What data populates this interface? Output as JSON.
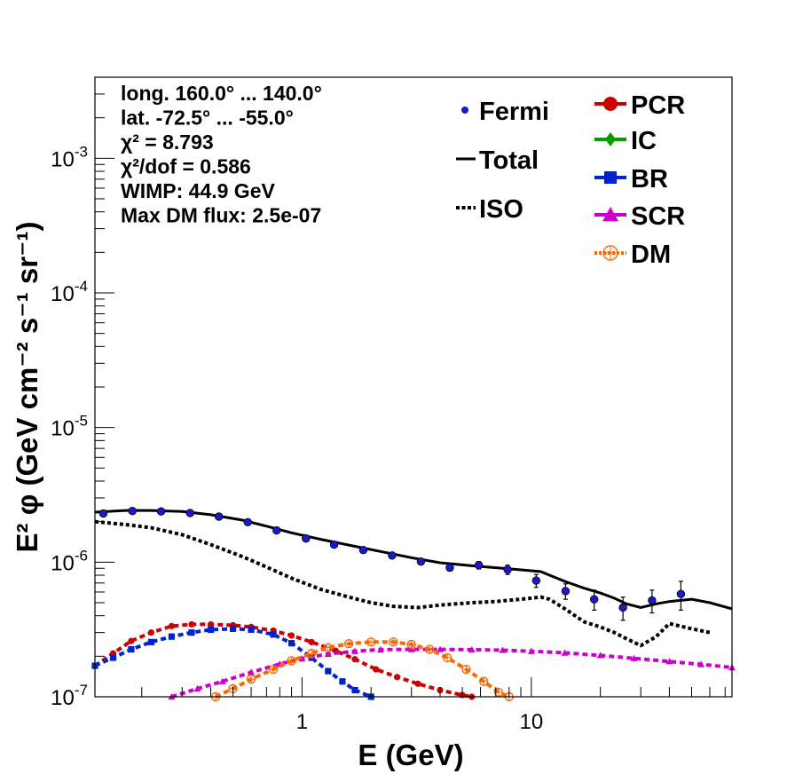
{
  "chart_data": {
    "type": "line",
    "title": "",
    "xlabel": "E (GeV)",
    "ylabel": "E² φ (GeV cm⁻² s⁻¹ sr⁻¹)",
    "xscale": "log",
    "yscale": "log",
    "xlim": [
      0.125,
      75
    ],
    "ylim": [
      1e-07,
      0.004
    ],
    "grid": false,
    "x_ticks": [
      {
        "value": 1,
        "label": "1"
      },
      {
        "value": 10,
        "label": "10"
      }
    ],
    "y_ticks": [
      {
        "value": 1e-07,
        "base": "10",
        "exp": "-7"
      },
      {
        "value": 1e-06,
        "base": "10",
        "exp": "-6"
      },
      {
        "value": 1e-05,
        "base": "10",
        "exp": "-5"
      },
      {
        "value": 0.0001,
        "base": "10",
        "exp": "-4"
      },
      {
        "value": 0.001,
        "base": "10",
        "exp": "-3"
      }
    ],
    "info_lines": [
      "long. 160.0° ... 140.0°",
      "lat. -72.5° ... -55.0°",
      "χ² = 8.793",
      "χ²/dof = 0.586",
      "WIMP: 44.9 GeV",
      "Max DM flux: 2.5e-07"
    ],
    "legend_left": [
      {
        "label": "Fermi",
        "key": "fermi"
      },
      {
        "label": "Total",
        "key": "total"
      },
      {
        "label": "ISO",
        "key": "iso"
      }
    ],
    "legend_right": [
      {
        "label": "PCR",
        "key": "pcr"
      },
      {
        "label": "IC",
        "key": "ic"
      },
      {
        "label": "BR",
        "key": "br"
      },
      {
        "label": "SCR",
        "key": "scr"
      },
      {
        "label": "DM",
        "key": "dm"
      }
    ],
    "colors": {
      "fermi": "#1a1acc",
      "total": "#000000",
      "iso": "#000000",
      "pcr": "#cc0000",
      "ic": "#00a000",
      "br": "#0022cc",
      "scr": "#cc00cc",
      "dm": "#ff6600"
    },
    "fermi": [
      {
        "x": 0.136,
        "y": 2.3e-06,
        "err": 5e-08
      },
      {
        "x": 0.182,
        "y": 2.4e-06,
        "err": 5e-08
      },
      {
        "x": 0.243,
        "y": 2.38e-06,
        "err": 5e-08
      },
      {
        "x": 0.325,
        "y": 2.32e-06,
        "err": 5e-08
      },
      {
        "x": 0.434,
        "y": 2.18e-06,
        "err": 5e-08
      },
      {
        "x": 0.58,
        "y": 1.98e-06,
        "err": 5e-08
      },
      {
        "x": 0.775,
        "y": 1.72e-06,
        "err": 5e-08
      },
      {
        "x": 1.04,
        "y": 1.5e-06,
        "err": 5e-08
      },
      {
        "x": 1.38,
        "y": 1.35e-06,
        "err": 5e-08
      },
      {
        "x": 1.85,
        "y": 1.23e-06,
        "err": 5e-08
      },
      {
        "x": 2.47,
        "y": 1.12e-06,
        "err": 5e-08
      },
      {
        "x": 3.3,
        "y": 1.01e-06,
        "err": 5e-08
      },
      {
        "x": 4.41,
        "y": 9.1e-07,
        "err": 5e-08
      },
      {
        "x": 5.9,
        "y": 9.5e-07,
        "err": 6e-08
      },
      {
        "x": 7.88,
        "y": 8.8e-07,
        "err": 7e-08
      },
      {
        "x": 10.5,
        "y": 7.3e-07,
        "err": 8e-08
      },
      {
        "x": 14.1,
        "y": 6.1e-07,
        "err": 8e-08
      },
      {
        "x": 18.8,
        "y": 5.3e-07,
        "err": 9e-08
      },
      {
        "x": 25.1,
        "y": 4.6e-07,
        "err": 9e-08
      },
      {
        "x": 33.6,
        "y": 5.2e-07,
        "err": 1e-07
      },
      {
        "x": 44.9,
        "y": 5.8e-07,
        "err": 1.4e-07
      }
    ],
    "series": [
      {
        "key": "total",
        "style": "solid",
        "x": [
          0.125,
          0.17,
          0.22,
          0.3,
          0.4,
          0.55,
          0.7,
          0.9,
          1.2,
          1.6,
          2.2,
          3,
          4,
          5.5,
          7.5,
          9.5,
          11,
          12,
          14,
          17,
          20,
          23,
          26,
          30,
          35,
          40,
          50,
          60,
          75
        ],
        "y": [
          2.35e-06,
          2.42e-06,
          2.42e-06,
          2.38e-06,
          2.25e-06,
          2.05e-06,
          1.85e-06,
          1.65e-06,
          1.48e-06,
          1.34e-06,
          1.2e-06,
          1.08e-06,
          9.9e-07,
          9.4e-07,
          9e-07,
          8.7e-07,
          8.5e-07,
          8e-07,
          7.2e-07,
          6.4e-07,
          5.9e-07,
          5.4e-07,
          4.9e-07,
          4.6e-07,
          4.9e-07,
          5.1e-07,
          5.3e-07,
          5e-07,
          4.5e-07
        ]
      },
      {
        "key": "iso",
        "style": "dotted",
        "x": [
          0.125,
          0.17,
          0.22,
          0.3,
          0.4,
          0.55,
          0.7,
          0.9,
          1.2,
          1.6,
          2,
          2.5,
          3.2,
          4,
          5.5,
          7,
          9,
          11,
          12,
          14,
          17,
          20,
          23,
          26,
          30,
          35,
          40,
          50,
          60
        ],
        "y": [
          2e-06,
          1.9e-06,
          1.8e-06,
          1.6e-06,
          1.35e-06,
          1.1e-06,
          9.2e-07,
          7.6e-07,
          6.3e-07,
          5.5e-07,
          5e-07,
          4.7e-07,
          4.6e-07,
          4.8e-07,
          5e-07,
          5.1e-07,
          5.3e-07,
          5.5e-07,
          5.3e-07,
          4.5e-07,
          3.6e-07,
          3.3e-07,
          3e-07,
          2.7e-07,
          2.4e-07,
          2.8e-07,
          3.5e-07,
          3.2e-07,
          3e-07
        ]
      },
      {
        "key": "pcr",
        "style": "dashed-markers",
        "marker": "circle",
        "x": [
          0.125,
          0.15,
          0.18,
          0.22,
          0.27,
          0.33,
          0.4,
          0.5,
          0.6,
          0.75,
          0.9,
          1.1,
          1.4,
          1.7,
          2.1,
          2.6,
          3.2,
          4,
          5,
          5.5
        ],
        "y": [
          1.7e-07,
          2.1e-07,
          2.6e-07,
          3e-07,
          3.35e-07,
          3.45e-07,
          3.45e-07,
          3.4e-07,
          3.3e-07,
          3.1e-07,
          2.85e-07,
          2.55e-07,
          2.2e-07,
          1.9e-07,
          1.6e-07,
          1.4e-07,
          1.25e-07,
          1.12e-07,
          1.03e-07,
          1e-07
        ]
      },
      {
        "key": "br",
        "style": "dashed-markers",
        "marker": "square",
        "x": [
          0.125,
          0.15,
          0.18,
          0.22,
          0.27,
          0.33,
          0.4,
          0.5,
          0.6,
          0.75,
          0.9,
          1.1,
          1.3,
          1.5,
          1.7,
          2.0
        ],
        "y": [
          1.7e-07,
          1.95e-07,
          2.25e-07,
          2.55e-07,
          2.8e-07,
          3e-07,
          3.15e-07,
          3.2e-07,
          3.15e-07,
          2.9e-07,
          2.5e-07,
          1.95e-07,
          1.55e-07,
          1.3e-07,
          1.12e-07,
          1e-07
        ]
      },
      {
        "key": "scr",
        "style": "dashed-markers",
        "marker": "triangle",
        "x": [
          0.27,
          0.35,
          0.45,
          0.6,
          0.8,
          1.0,
          1.3,
          1.7,
          2.2,
          3,
          4,
          5.5,
          7.5,
          10,
          14,
          20,
          28,
          40,
          55,
          75
        ],
        "y": [
          1e-07,
          1.15e-07,
          1.3e-07,
          1.52e-07,
          1.75e-07,
          1.92e-07,
          2.08e-07,
          2.18e-07,
          2.24e-07,
          2.25e-07,
          2.25e-07,
          2.24e-07,
          2.22e-07,
          2.18e-07,
          2.12e-07,
          2.03e-07,
          1.93e-07,
          1.83e-07,
          1.74e-07,
          1.65e-07
        ]
      },
      {
        "key": "dm",
        "style": "dashed-markers",
        "marker": "open-circle",
        "x": [
          0.42,
          0.5,
          0.6,
          0.75,
          0.9,
          1.1,
          1.3,
          1.6,
          2.0,
          2.5,
          3.0,
          3.6,
          4.3,
          5.2,
          6.2,
          7.2,
          8.0
        ],
        "y": [
          1e-07,
          1.15e-07,
          1.35e-07,
          1.6e-07,
          1.85e-07,
          2.1e-07,
          2.32e-07,
          2.48e-07,
          2.55e-07,
          2.55e-07,
          2.45e-07,
          2.25e-07,
          1.95e-07,
          1.6e-07,
          1.3e-07,
          1.08e-07,
          1e-07
        ]
      }
    ]
  }
}
